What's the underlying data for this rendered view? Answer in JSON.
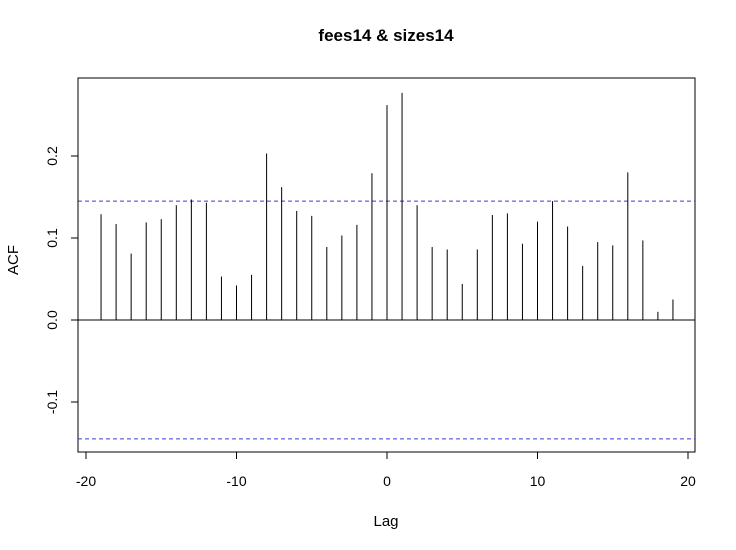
{
  "chart_data": {
    "type": "bar",
    "title": "fees14 & sizes14",
    "xlabel": "Lag",
    "ylabel": "ACF",
    "xlim": [
      -20,
      20
    ],
    "ylim": [
      -0.16,
      0.29
    ],
    "xticks": [
      -20,
      -10,
      0,
      10,
      20
    ],
    "xtick_labels": [
      "-20",
      "-10",
      "0",
      "10",
      "20"
    ],
    "yticks": [
      -0.1,
      0.0,
      0.1,
      0.2
    ],
    "ytick_labels": [
      "-0.1",
      "0.0",
      "0.1",
      "0.2"
    ],
    "grid": false,
    "series": [
      {
        "lags": [
          -19,
          -18,
          -17,
          -16,
          -15,
          -14,
          -13,
          -12,
          -11,
          -10,
          -9,
          -8,
          -7,
          -6,
          -5,
          -4,
          -3,
          -2,
          -1,
          0,
          1,
          2,
          3,
          4,
          5,
          6,
          7,
          8,
          9,
          10,
          11,
          12,
          13,
          14,
          15,
          16,
          17,
          18,
          19
        ],
        "values": [
          0.129,
          0.117,
          0.081,
          0.119,
          0.123,
          0.14,
          0.147,
          0.143,
          0.053,
          0.042,
          0.055,
          0.203,
          0.162,
          0.133,
          0.127,
          0.089,
          0.103,
          0.116,
          0.179,
          0.262,
          0.277,
          0.14,
          0.089,
          0.086,
          0.044,
          0.086,
          0.128,
          0.13,
          0.093,
          0.12,
          0.145,
          0.114,
          0.066,
          0.095,
          0.091,
          0.18,
          0.097,
          0.01,
          0.025
        ]
      }
    ],
    "confidence_bounds": [
      0.145,
      -0.145
    ],
    "colors": {
      "spike": "#000000",
      "zero_line": "#000000",
      "bound_line": "#3b3bd6",
      "frame": "#000000"
    }
  }
}
